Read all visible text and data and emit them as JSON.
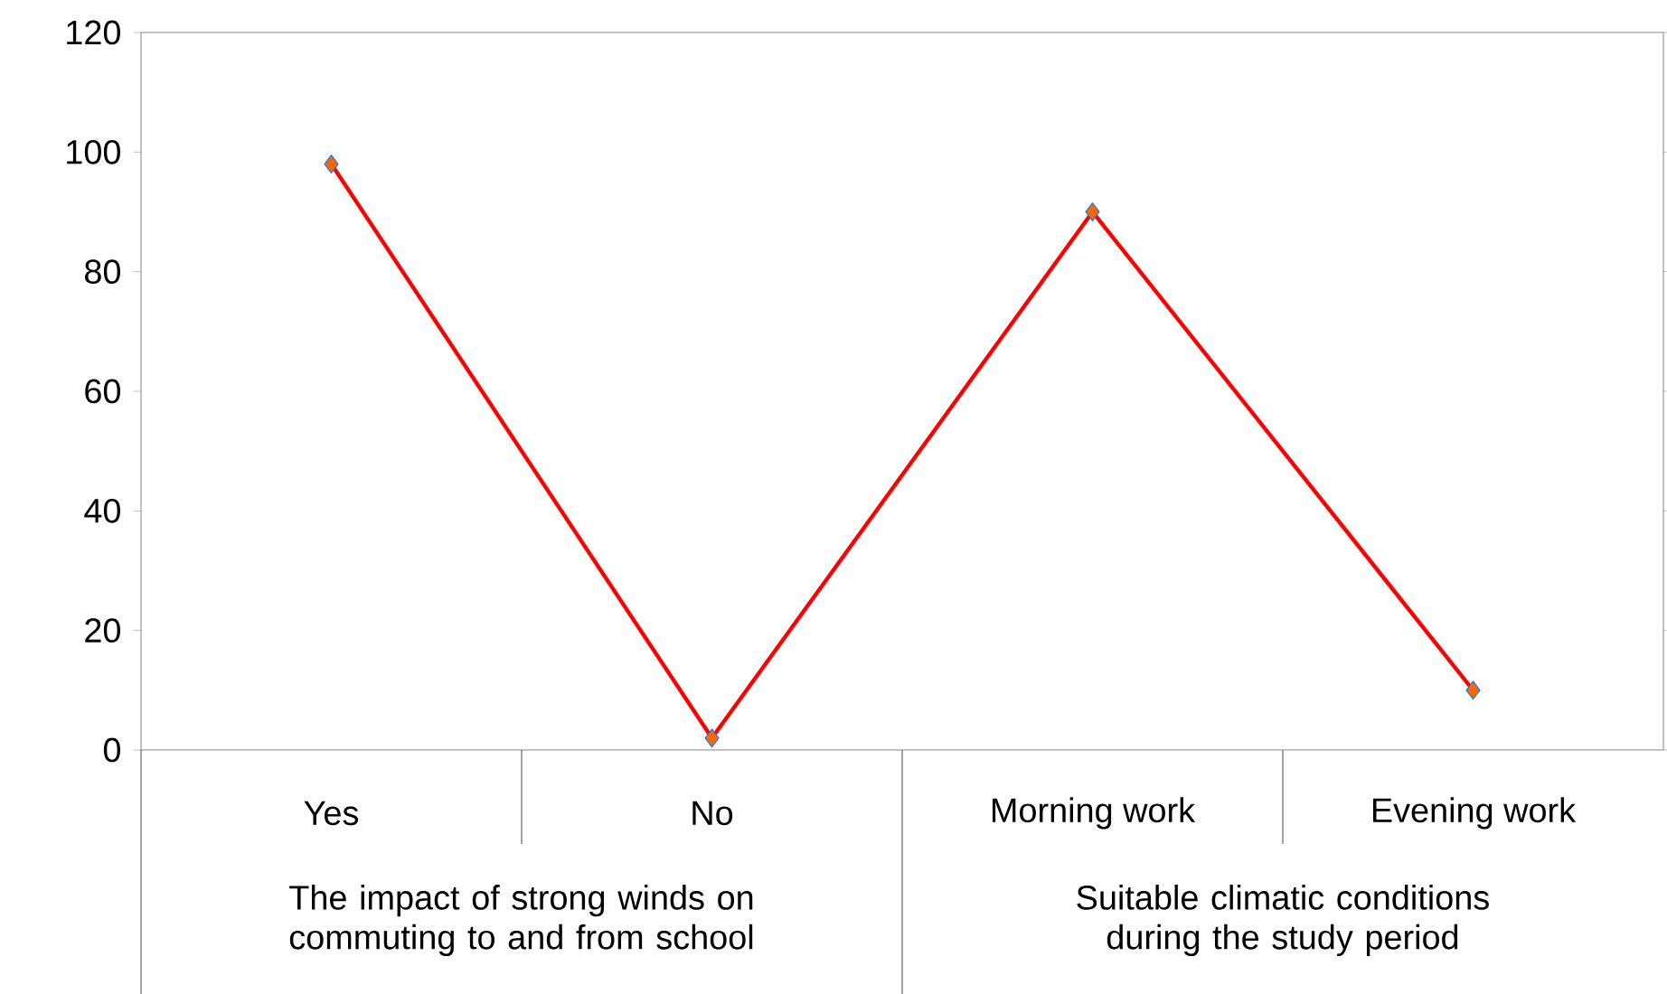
{
  "chart_data": {
    "type": "line",
    "categories": [
      "Yes",
      "No",
      "Morning work",
      "Evening work"
    ],
    "series": [
      {
        "color": "#ff0000",
        "values": [
          98,
          2,
          90,
          10
        ]
      }
    ],
    "ylim": [
      0,
      120
    ],
    "yticks": [
      0,
      20,
      40,
      60,
      80,
      100,
      120
    ],
    "grid": false,
    "marker": "diamond",
    "line_style": "solid",
    "annotations": [
      "The impact of strong winds on commuting to and from school",
      "Suitable climatic conditions during the study period"
    ]
  }
}
